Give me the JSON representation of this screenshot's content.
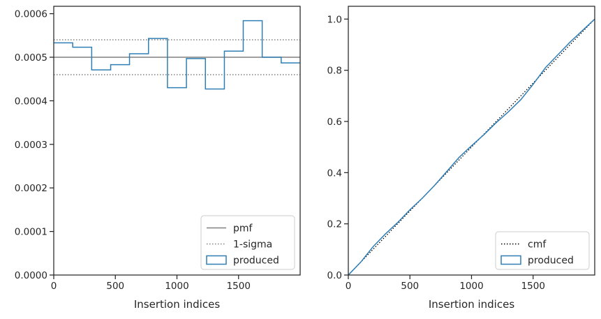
{
  "chart_data": [
    {
      "type": "line",
      "xlabel": "Insertion indices",
      "ylabel": "",
      "xlim": [
        0,
        2000
      ],
      "ylim": [
        0,
        0.000617
      ],
      "x_ticks": [
        0,
        500,
        1000,
        1500
      ],
      "y_ticks": [
        0,
        0.0001,
        0.0002,
        0.0003,
        0.0004,
        0.0005,
        0.0006
      ],
      "x_tick_labels": [
        "0",
        "500",
        "1000",
        "1500"
      ],
      "y_tick_labels": [
        "0.0000",
        "0.0001",
        "0.0002",
        "0.0003",
        "0.0004",
        "0.0005",
        "0.0006"
      ],
      "grid": false,
      "legend_position": "bottom-right",
      "series": [
        {
          "name": "pmf",
          "style": "solid",
          "color": "#808080",
          "x": [
            0,
            2000
          ],
          "values": [
            0.0005,
            0.0005
          ]
        },
        {
          "name": "1-sigma",
          "style": "dotted",
          "color": "#808080",
          "lines": [
            0.00054,
            0.00046
          ]
        },
        {
          "name": "produced",
          "style": "step",
          "color": "#2f7fb5",
          "bin_edges": [
            0,
            154,
            308,
            462,
            615,
            769,
            923,
            1077,
            1231,
            1385,
            1538,
            1692,
            1846,
            2000
          ],
          "values": [
            0.000533,
            0.000523,
            0.000471,
            0.000483,
            0.000508,
            0.000543,
            0.00043,
            0.000497,
            0.000427,
            0.000514,
            0.000584,
            0.0005,
            0.000487
          ]
        }
      ]
    },
    {
      "type": "line",
      "xlabel": "Insertion indices",
      "ylabel": "",
      "xlim": [
        0,
        2000
      ],
      "ylim": [
        0,
        1.05
      ],
      "x_ticks": [
        0,
        500,
        1000,
        1500
      ],
      "y_ticks": [
        0,
        0.2,
        0.4,
        0.6,
        0.8,
        1.0
      ],
      "x_tick_labels": [
        "0",
        "500",
        "1000",
        "1500"
      ],
      "y_tick_labels": [
        "0.0",
        "0.2",
        "0.4",
        "0.6",
        "0.8",
        "1.0"
      ],
      "grid": false,
      "legend_position": "bottom-right",
      "series": [
        {
          "name": "cmf",
          "style": "dotted",
          "color": "#000000",
          "x": [
            0,
            2000
          ],
          "values": [
            0,
            1
          ]
        },
        {
          "name": "produced",
          "style": "solid",
          "color": "#2f7fb5",
          "x": [
            0,
            100,
            200,
            300,
            400,
            500,
            600,
            700,
            800,
            900,
            1000,
            1100,
            1200,
            1300,
            1400,
            1500,
            1600,
            1700,
            1800,
            1900,
            2000
          ],
          "values": [
            0,
            0.05,
            0.11,
            0.16,
            0.205,
            0.255,
            0.3,
            0.35,
            0.405,
            0.46,
            0.505,
            0.548,
            0.595,
            0.638,
            0.685,
            0.745,
            0.81,
            0.86,
            0.91,
            0.955,
            1.0
          ]
        }
      ]
    }
  ]
}
